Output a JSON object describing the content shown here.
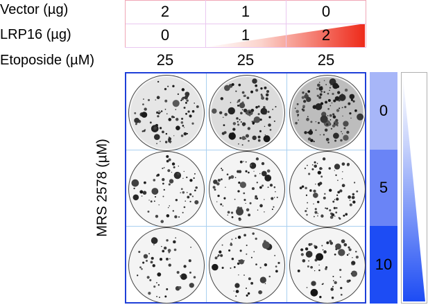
{
  "rows": {
    "vector": {
      "label": "Vector (µg)",
      "values": [
        "2",
        "1",
        "0"
      ]
    },
    "lrp16": {
      "label": "LRP16 (µg)",
      "values": [
        "0",
        "1",
        "2"
      ]
    },
    "etoposide": {
      "label": "Etoposide (µM)",
      "values": [
        "25",
        "25",
        "25"
      ]
    }
  },
  "y_axis": {
    "label": "MRS 2578 (µM)"
  },
  "doses": [
    "0",
    "5",
    "10"
  ],
  "colors": {
    "table_border": "#f0a6b6",
    "grid_border": "#1e3fd8",
    "grid_lines": "#a9d0f0",
    "red_wedge": "#ee2a1a",
    "dose_0": "#a7b6f8",
    "dose_5": "#6a84f6",
    "dose_10": "#1d4cf4",
    "blue_wedge": "#1d4cf4"
  },
  "plate_colony_density": [
    [
      0.55,
      0.7,
      1.0
    ],
    [
      0.4,
      0.55,
      0.6
    ],
    [
      0.25,
      0.3,
      0.4
    ]
  ]
}
